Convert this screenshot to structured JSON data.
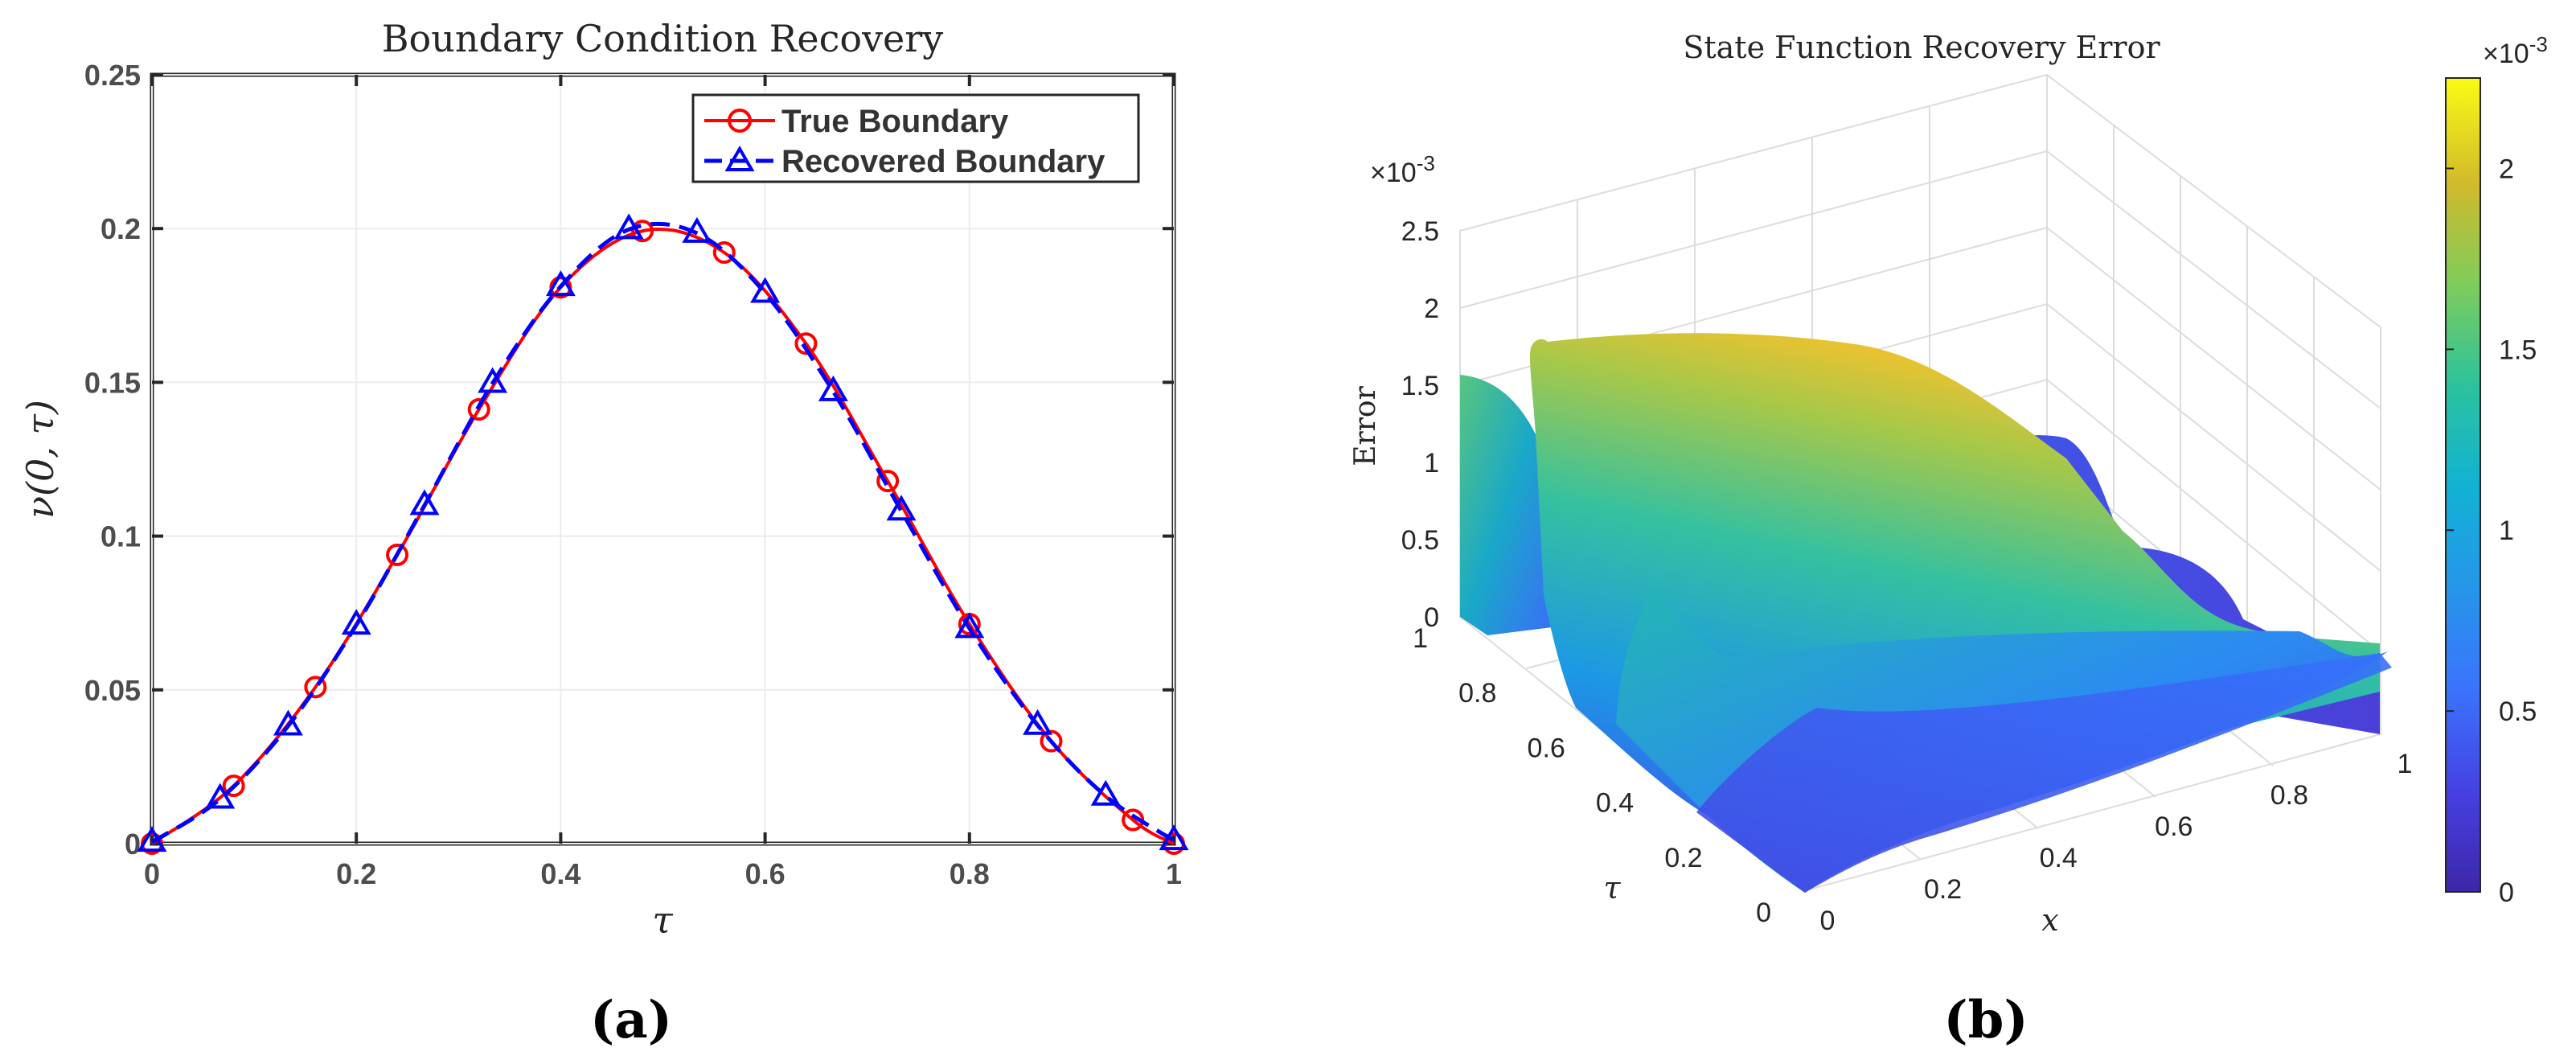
{
  "panel_labels": {
    "a": "(a)",
    "b": "(b)"
  },
  "chart_data": [
    {
      "type": "line",
      "title": "Boundary Condition Recovery",
      "xlabel": "τ",
      "ylabel": "ν(0, τ)",
      "xlim": [
        0,
        1
      ],
      "ylim": [
        0,
        0.25
      ],
      "xticks": [
        "0",
        "0.2",
        "0.4",
        "0.6",
        "0.8",
        "1"
      ],
      "yticks": [
        "0",
        "0.05",
        "0.1",
        "0.15",
        "0.2",
        "0.25"
      ],
      "grid": true,
      "legend_position": "top-right",
      "series": [
        {
          "name": "True Boundary",
          "color": "#ff0000",
          "marker": "circle",
          "x": [
            0,
            0.08,
            0.16,
            0.24,
            0.32,
            0.4,
            0.48,
            0.56,
            0.64,
            0.72,
            0.8,
            0.88,
            0.96,
            1
          ],
          "y": [
            0,
            0.0188,
            0.0509,
            0.0939,
            0.1412,
            0.1809,
            0.1992,
            0.1922,
            0.1626,
            0.1179,
            0.0714,
            0.0333,
            0.0077,
            0
          ]
        },
        {
          "name": "Recovered Boundary",
          "color": "#0000ff",
          "marker": "triangle",
          "x": [
            0,
            0.0667,
            0.1333,
            0.2,
            0.2667,
            0.3333,
            0.4,
            0.4667,
            0.5333,
            0.6,
            0.6667,
            0.7333,
            0.8,
            0.8667,
            0.9333,
            1
          ],
          "y": [
            0.0005,
            0.0145,
            0.0383,
            0.0711,
            0.11,
            0.1497,
            0.1812,
            0.1997,
            0.1985,
            0.179,
            0.147,
            0.1082,
            0.07,
            0.0385,
            0.0155,
            0.001
          ]
        }
      ]
    },
    {
      "type": "surface",
      "title": "State Function Recovery Error",
      "xlabel": "x",
      "ylabel": "τ",
      "zlabel": "Error",
      "zscale_label": "×10",
      "zscale_exp": "-3",
      "xlim": [
        0,
        1
      ],
      "ylim": [
        0,
        1
      ],
      "zlim": [
        0,
        0.0025
      ],
      "xticks": [
        "0",
        "0.2",
        "0.4",
        "0.6",
        "0.8",
        "1"
      ],
      "yticks": [
        "0",
        "0.2",
        "0.4",
        "0.6",
        "0.8",
        "1"
      ],
      "zticks": [
        "0",
        "0.5",
        "1",
        "1.5",
        "2",
        "2.5"
      ],
      "colormap": "parula",
      "colorbar": {
        "scale_label": "×10",
        "scale_exp": "-3",
        "ticks": [
          "0",
          "0.5",
          "1",
          "1.5",
          "2"
        ],
        "range": [
          0,
          0.00225
        ]
      }
    }
  ]
}
